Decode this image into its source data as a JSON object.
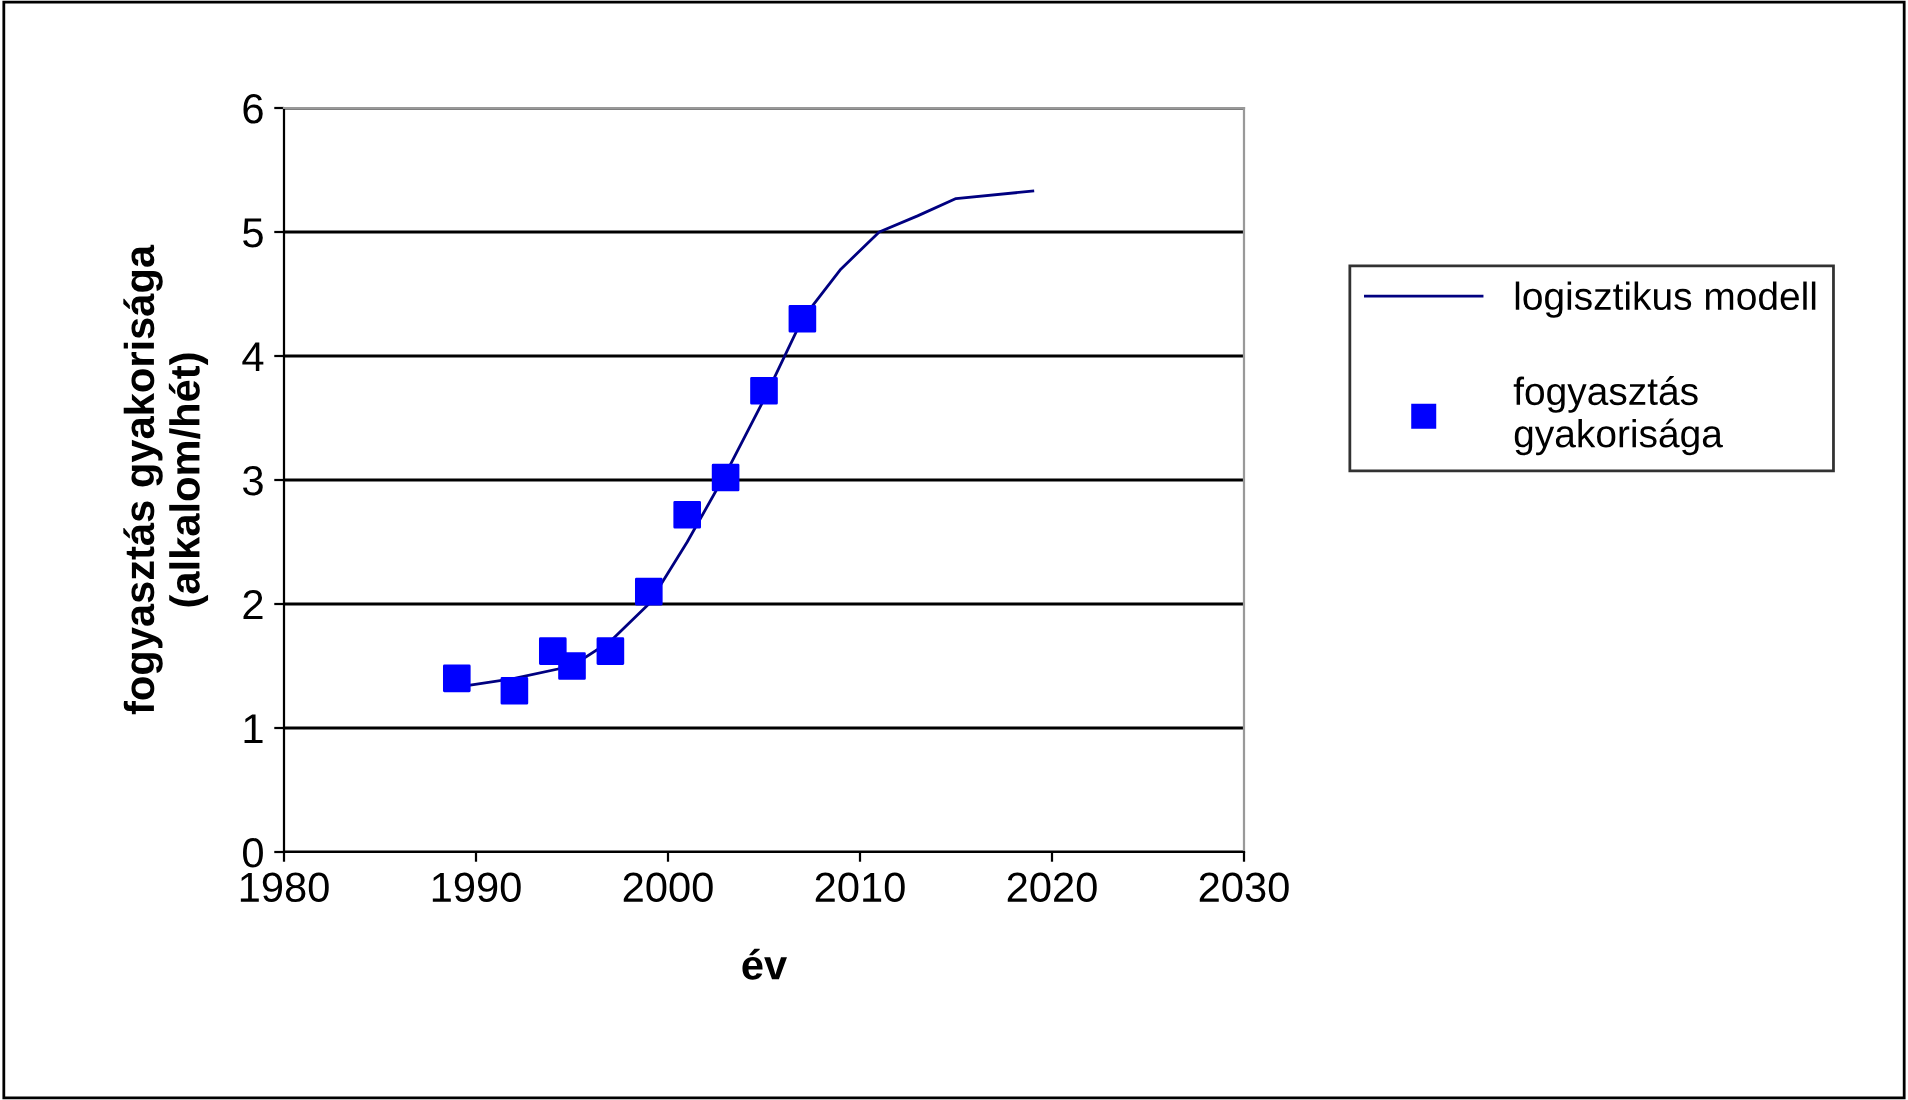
{
  "chart_data": {
    "type": "scatter",
    "xlabel": "év",
    "ylabel": "fogyasztás gyakorisága\n(alkalom/hét)",
    "xlim": [
      1980,
      2030
    ],
    "xticks": [
      1980,
      1990,
      2000,
      2010,
      2020,
      2030
    ],
    "ylim": [
      0,
      6
    ],
    "yticks": [
      0,
      1,
      2,
      3,
      4,
      5,
      6
    ],
    "grid": "y",
    "legend": "right",
    "series": [
      {
        "name": "logisztikus modell",
        "type": "line",
        "color": "#000080",
        "marker": "none",
        "line_style": "solid",
        "x": [
          1989,
          1992,
          1995,
          1997,
          1999,
          2001,
          2003,
          2005,
          2007,
          2009,
          2011,
          2013,
          2015,
          2019
        ],
        "values": [
          1.33,
          1.4,
          1.5,
          1.7,
          2.0,
          2.5,
          3.05,
          3.65,
          4.3,
          4.7,
          5.0,
          5.13,
          5.27,
          5.33
        ]
      },
      {
        "name": "fogyasztás\ngyakorisága",
        "color": "#0000ff",
        "marker": "square",
        "x": [
          1989,
          1992,
          1994,
          1995,
          1997,
          1999,
          2001,
          2003,
          2005,
          2007
        ],
        "values": [
          1.4,
          1.3,
          1.62,
          1.5,
          1.62,
          2.1,
          2.72,
          3.02,
          3.72,
          4.3
        ]
      }
    ]
  }
}
